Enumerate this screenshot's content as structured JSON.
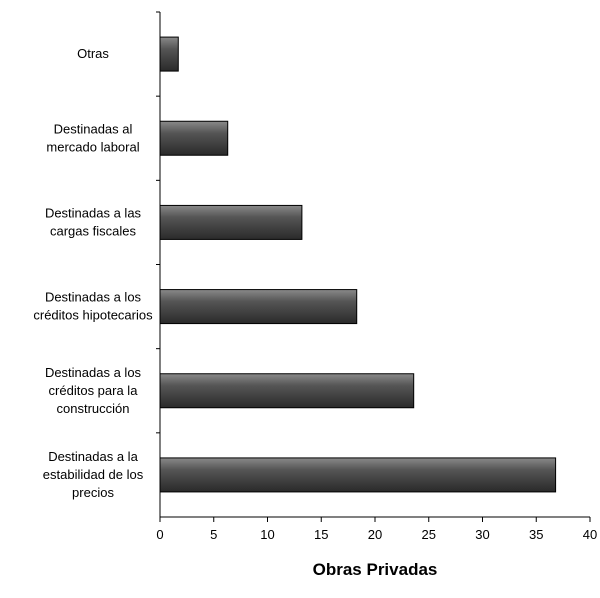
{
  "chart_data": {
    "type": "bar",
    "orientation": "horizontal",
    "categories": [
      [
        "Otras"
      ],
      [
        "Destinadas al",
        "mercado laboral"
      ],
      [
        "Destinadas a las",
        "cargas fiscales"
      ],
      [
        "Destinadas a los",
        "créditos hipotecarios"
      ],
      [
        "Destinadas a los",
        "créditos para la",
        "construcción"
      ],
      [
        "Destinadas a la",
        "estabilidad de los",
        "precios"
      ]
    ],
    "values": [
      1.7,
      6.3,
      13.2,
      18.3,
      23.6,
      36.8
    ],
    "xlabel": "Obras Privadas",
    "xlim": [
      0,
      40
    ],
    "xticks": [
      0,
      5,
      10,
      15,
      20,
      25,
      30,
      35,
      40
    ],
    "grid": false,
    "bar_color": "#4a4a4a"
  }
}
